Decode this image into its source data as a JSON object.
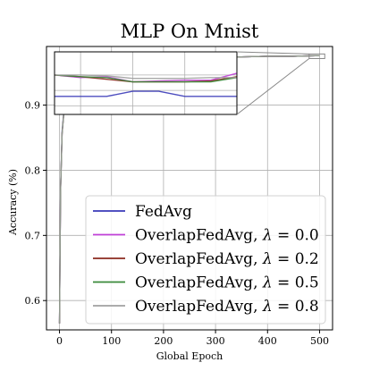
{
  "chart_data": {
    "type": "line",
    "title": "MLP On Mnist",
    "xlabel": "Global Epoch",
    "ylabel": "Accuracy (%)",
    "xlim": [
      -25,
      525
    ],
    "ylim": [
      0.555,
      0.99
    ],
    "xticks": [
      0,
      100,
      200,
      300,
      400,
      500
    ],
    "yticks": [
      0.6,
      0.7,
      0.8,
      0.9
    ],
    "grid": true,
    "legend_position": "lower-right",
    "x": [
      0,
      2,
      5,
      10,
      20,
      50,
      100,
      150,
      200,
      250,
      300,
      350,
      400,
      450,
      500
    ],
    "series": [
      {
        "name": "FedAvg",
        "color": "#3a3ab8",
        "values": [
          0.565,
          0.77,
          0.86,
          0.905,
          0.935,
          0.953,
          0.962,
          0.967,
          0.97,
          0.972,
          0.973,
          0.974,
          0.975,
          0.975,
          0.976
        ]
      },
      {
        "name": "OverlapFedAvg, λ = 0.0",
        "color": "#c040d8",
        "values": [
          0.565,
          0.765,
          0.855,
          0.903,
          0.934,
          0.952,
          0.961,
          0.966,
          0.969,
          0.971,
          0.973,
          0.974,
          0.975,
          0.975,
          0.976
        ]
      },
      {
        "name": "OverlapFedAvg, λ = 0.2",
        "color": "#8b2a1f",
        "values": [
          0.565,
          0.768,
          0.857,
          0.904,
          0.934,
          0.952,
          0.962,
          0.967,
          0.969,
          0.971,
          0.973,
          0.974,
          0.975,
          0.975,
          0.976
        ]
      },
      {
        "name": "OverlapFedAvg, λ = 0.5",
        "color": "#3a8a3a",
        "values": [
          0.565,
          0.766,
          0.856,
          0.903,
          0.934,
          0.952,
          0.961,
          0.966,
          0.969,
          0.971,
          0.973,
          0.974,
          0.975,
          0.975,
          0.976
        ]
      },
      {
        "name": "OverlapFedAvg, λ = 0.8",
        "color": "#a0a0a0",
        "values": [
          0.565,
          0.767,
          0.856,
          0.904,
          0.934,
          0.952,
          0.962,
          0.966,
          0.969,
          0.972,
          0.973,
          0.974,
          0.975,
          0.975,
          0.976
        ]
      }
    ],
    "legend": {
      "entries": [
        {
          "prefix": "FedAvg",
          "lambda": ""
        },
        {
          "prefix": "OverlapFedAvg, ",
          "lambda": "0.0"
        },
        {
          "prefix": "OverlapFedAvg, ",
          "lambda": "0.2"
        },
        {
          "prefix": "OverlapFedAvg, ",
          "lambda": "0.5"
        },
        {
          "prefix": "OverlapFedAvg, ",
          "lambda": "0.8"
        }
      ]
    },
    "inset": {
      "xlim": [
        380,
        520
      ],
      "ylim": [
        0.9714,
        0.9787
      ],
      "x": [
        380,
        400,
        420,
        440,
        460,
        480,
        500,
        520
      ],
      "series_values": [
        [
          0.9735,
          0.9735,
          0.9735,
          0.9741,
          0.9741,
          0.9735,
          0.9735,
          0.9735
        ],
        [
          0.976,
          0.9757,
          0.9758,
          0.9752,
          0.9753,
          0.9754,
          0.9754,
          0.9762
        ],
        [
          0.976,
          0.9758,
          0.9755,
          0.9752,
          0.9752,
          0.9752,
          0.9753,
          0.9758
        ],
        [
          0.976,
          0.9758,
          0.9757,
          0.9752,
          0.9752,
          0.9752,
          0.9752,
          0.9757
        ],
        [
          0.976,
          0.976,
          0.9759,
          0.9756,
          0.9756,
          0.9756,
          0.9757,
          0.9757
        ]
      ],
      "highlight_x": [
        480,
        510
      ],
      "highlight_y": [
        0.9715,
        0.9785
      ]
    }
  }
}
